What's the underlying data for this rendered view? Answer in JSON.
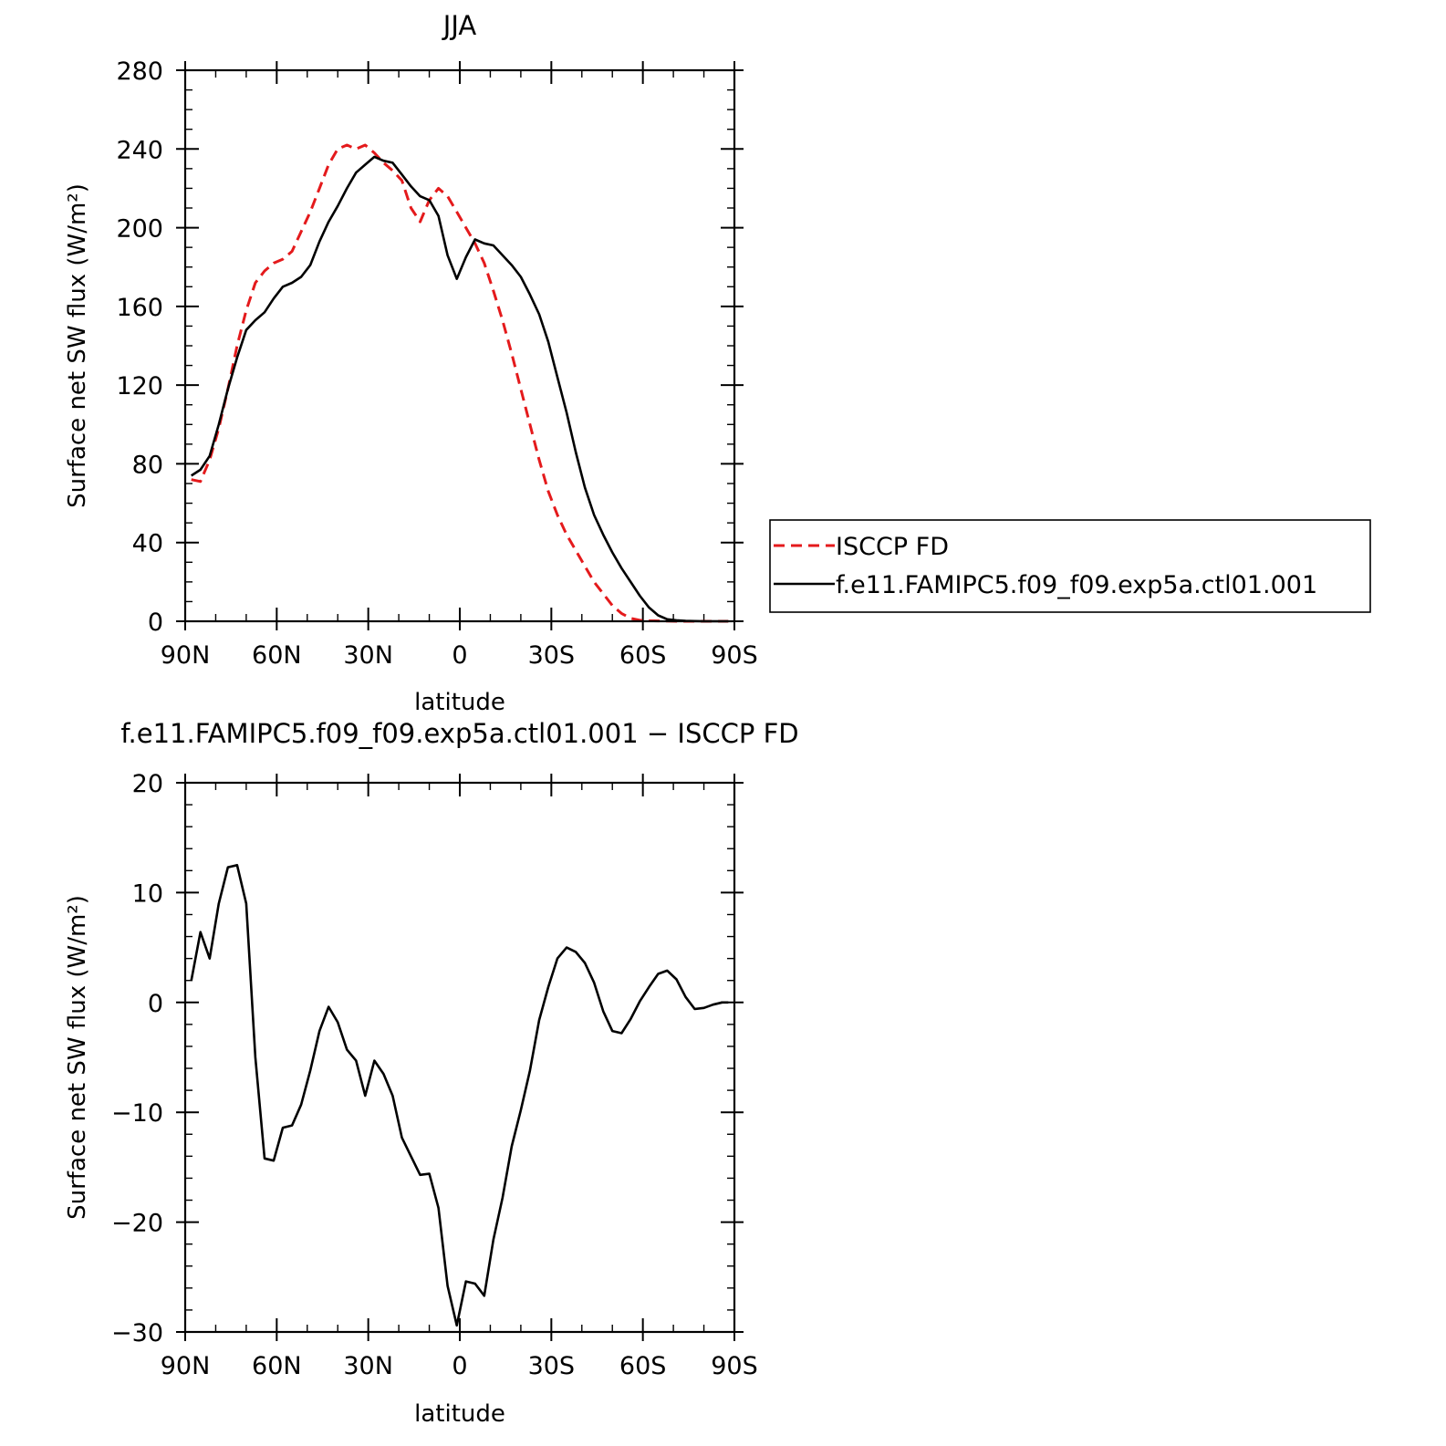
{
  "chart_data": [
    {
      "type": "line",
      "title": "JJA",
      "xlabel": "latitude",
      "ylabel": "Surface net SW flux (W/m²)",
      "xlim": [
        90,
        -90
      ],
      "ylim": [
        0,
        280
      ],
      "x_ticks": [
        90,
        60,
        30,
        0,
        -30,
        -60,
        -90
      ],
      "x_tick_labels": [
        "90N",
        "60N",
        "30N",
        "0",
        "30S",
        "60S",
        "90S"
      ],
      "y_ticks": [
        0,
        40,
        80,
        120,
        160,
        200,
        240,
        280
      ],
      "y_tick_labels": [
        "0",
        "40",
        "80",
        "120",
        "160",
        "200",
        "240",
        "280"
      ],
      "legend_position": "right",
      "series": [
        {
          "name": "ISCCP FD",
          "color": "#e41a1c",
          "dash": "dashed",
          "x": [
            88,
            85,
            82,
            79,
            76,
            73,
            70,
            67,
            64,
            61,
            58,
            55,
            52,
            49,
            46,
            43,
            40,
            37,
            34,
            31,
            28,
            25,
            22,
            19,
            16,
            13,
            10,
            7,
            4,
            1,
            -2,
            -5,
            -8,
            -11,
            -14,
            -17,
            -20,
            -23,
            -26,
            -29,
            -32,
            -35,
            -38,
            -41,
            -44,
            -47,
            -50,
            -53,
            -56,
            -59,
            -62,
            -65,
            -68,
            -71,
            -74,
            -77,
            -80,
            -83,
            -86,
            -88
          ],
          "y": [
            72,
            71,
            82,
            98,
            118,
            140,
            158,
            172,
            178,
            182,
            184,
            188,
            198,
            208,
            220,
            232,
            240,
            242,
            240,
            242,
            238,
            233,
            229,
            224,
            210,
            203,
            214,
            220,
            216,
            208,
            200,
            192,
            182,
            168,
            153,
            136,
            118,
            100,
            82,
            66,
            54,
            44,
            36,
            28,
            20,
            14,
            8,
            4,
            1.5,
            0.5,
            0.3,
            0.2,
            0.1,
            0,
            0,
            0,
            0,
            0,
            0,
            0
          ]
        },
        {
          "name": "f.e11.FAMIPC5.f09_f09.exp5a.ctl01.001",
          "color": "#000000",
          "dash": "solid",
          "x": [
            88,
            85,
            82,
            79,
            76,
            73,
            70,
            67,
            64,
            61,
            58,
            55,
            52,
            49,
            46,
            43,
            40,
            37,
            34,
            31,
            28,
            25,
            22,
            19,
            16,
            13,
            10,
            7,
            4,
            1,
            -2,
            -5,
            -8,
            -11,
            -14,
            -17,
            -20,
            -23,
            -26,
            -29,
            -32,
            -35,
            -38,
            -41,
            -44,
            -47,
            -50,
            -53,
            -56,
            -59,
            -62,
            -65,
            -68,
            -71,
            -74,
            -77,
            -80,
            -83,
            -86,
            -88
          ],
          "y": [
            74,
            77,
            84,
            100,
            118,
            134,
            148,
            153,
            157,
            164,
            170,
            172,
            175,
            181,
            193,
            203,
            211,
            220,
            228,
            232,
            236,
            234,
            233,
            227,
            221,
            216,
            214,
            206,
            186,
            174,
            185,
            194,
            192,
            191,
            186,
            181,
            175,
            166,
            156,
            142,
            124,
            106,
            86,
            68,
            54,
            44,
            35,
            27,
            20,
            13,
            7,
            3,
            1,
            0.5,
            0.2,
            0.1,
            0,
            0,
            0,
            0
          ]
        }
      ]
    },
    {
      "type": "line",
      "title": "f.e11.FAMIPC5.f09_f09.exp5a.ctl01.001 − ISCCP FD",
      "xlabel": "latitude",
      "ylabel": "Surface net SW flux (W/m²)",
      "xlim": [
        90,
        -90
      ],
      "ylim": [
        -30,
        20
      ],
      "x_ticks": [
        90,
        60,
        30,
        0,
        -30,
        -60,
        -90
      ],
      "x_tick_labels": [
        "90N",
        "60N",
        "30N",
        "0",
        "30S",
        "60S",
        "90S"
      ],
      "y_ticks": [
        -30,
        -20,
        -10,
        0,
        10,
        20
      ],
      "y_tick_labels": [
        "−30",
        "−20",
        "−10",
        "0",
        "10",
        "20"
      ],
      "series": [
        {
          "color": "#000000",
          "dash": "solid",
          "x": [
            88,
            85,
            82,
            79,
            76,
            73,
            70,
            67,
            64,
            61,
            58,
            55,
            52,
            49,
            46,
            43,
            40,
            37,
            34,
            31,
            28,
            25,
            22,
            19,
            16,
            13,
            10,
            7,
            4,
            1,
            -2,
            -5,
            -8,
            -11,
            -14,
            -17,
            -20,
            -23,
            -26,
            -29,
            -32,
            -35,
            -38,
            -41,
            -44,
            -47,
            -50,
            -53,
            -56,
            -59,
            -62,
            -65,
            -68,
            -71,
            -74,
            -77,
            -80,
            -83,
            -86,
            -88
          ],
          "y": [
            2,
            6.4,
            4,
            9,
            12.3,
            12.5,
            9,
            -5,
            -14.2,
            -14.4,
            -11.4,
            -11.2,
            -9.3,
            -6.2,
            -2.6,
            -0.4,
            -1.8,
            -4.3,
            -5.3,
            -8.5,
            -5.3,
            -6.5,
            -8.5,
            -12.3,
            -14,
            -15.7,
            -15.6,
            -18.7,
            -25.8,
            -29.4,
            -25.4,
            -25.6,
            -26.7,
            -21.6,
            -17.8,
            -13.1,
            -9.8,
            -6.2,
            -1.6,
            1.4,
            4,
            5,
            4.6,
            3.6,
            1.8,
            -0.8,
            -2.6,
            -2.8,
            -1.5,
            0.1,
            1.4,
            2.6,
            2.9,
            2.1,
            0.5,
            -0.6,
            -0.5,
            -0.2,
            0,
            0
          ]
        }
      ]
    }
  ]
}
